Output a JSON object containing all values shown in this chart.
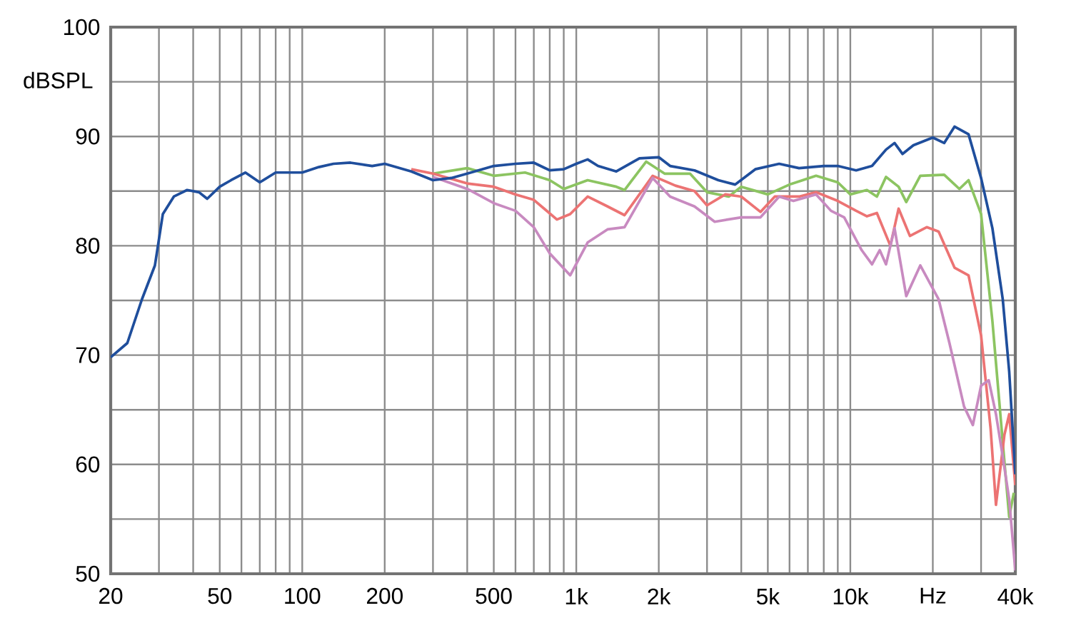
{
  "chart_data": {
    "type": "line",
    "ylabel": "dBSPL",
    "log": "x",
    "grid": true,
    "xlim": [
      20,
      40000
    ],
    "ylim": [
      50,
      100
    ],
    "xticks": [
      20,
      {
        "value": 30,
        "label": null
      },
      {
        "value": 40,
        "label": null
      },
      50,
      {
        "value": 60,
        "label": null
      },
      {
        "value": 70,
        "label": null
      },
      {
        "value": 80,
        "label": null
      },
      {
        "value": 90,
        "label": null
      },
      100,
      200,
      {
        "value": 300,
        "label": null
      },
      {
        "value": 400,
        "label": null
      },
      500,
      {
        "value": 600,
        "label": null
      },
      {
        "value": 700,
        "label": null
      },
      {
        "value": 800,
        "label": null
      },
      {
        "value": 900,
        "label": null
      },
      {
        "value": 1000,
        "label": "1k"
      },
      {
        "value": 2000,
        "label": "2k"
      },
      {
        "value": 3000,
        "label": null
      },
      {
        "value": 4000,
        "label": null
      },
      {
        "value": 5000,
        "label": "5k"
      },
      {
        "value": 6000,
        "label": null
      },
      {
        "value": 7000,
        "label": null
      },
      {
        "value": 8000,
        "label": null
      },
      {
        "value": 9000,
        "label": null
      },
      {
        "value": 10000,
        "label": "10k"
      },
      {
        "value": 20000,
        "label": "Hz"
      },
      {
        "value": 30000,
        "label": null
      },
      {
        "value": 40000,
        "label": "40k"
      }
    ],
    "yticks": [
      50,
      {
        "value": 55,
        "label": null
      },
      60,
      {
        "value": 65,
        "label": null
      },
      70,
      {
        "value": 75,
        "label": null
      },
      80,
      {
        "value": 85,
        "label": null
      },
      90,
      {
        "value": 95,
        "label": null
      },
      100
    ],
    "series": [
      {
        "color": "#8cc461",
        "x": [
          300,
          400,
          500,
          650,
          800,
          900,
          1100,
          1400,
          1500,
          1800,
          2100,
          2600,
          3000,
          3600,
          4000,
          5000,
          6000,
          7500,
          9000,
          10000,
          11500,
          12500,
          13500,
          15000,
          16000,
          18000,
          22000,
          25000,
          27000,
          30000,
          33000,
          36000,
          38000,
          39500
        ],
        "values": [
          86.6,
          87.1,
          86.4,
          86.7,
          86.0,
          85.2,
          86.0,
          85.4,
          85.1,
          87.7,
          86.6,
          86.6,
          84.9,
          84.5,
          85.4,
          84.7,
          85.6,
          86.4,
          85.8,
          84.7,
          85.1,
          84.5,
          86.3,
          85.4,
          84.0,
          86.4,
          86.5,
          85.2,
          86.0,
          82.9,
          73.1,
          62.0,
          55.2,
          57.4
        ]
      },
      {
        "color": "#ec7373",
        "x": [
          250,
          300,
          400,
          500,
          600,
          700,
          850,
          950,
          1100,
          1300,
          1500,
          1700,
          1900,
          2300,
          2700,
          3000,
          3500,
          4000,
          4700,
          5300,
          6500,
          7500,
          9000,
          10500,
          11500,
          12500,
          14000,
          15000,
          16500,
          19000,
          21000,
          24000,
          27000,
          30000,
          32500,
          34000,
          36500,
          38000,
          40000
        ],
        "values": [
          87.0,
          86.6,
          85.7,
          85.4,
          84.7,
          84.2,
          82.4,
          82.9,
          84.5,
          83.6,
          82.8,
          84.7,
          86.4,
          85.5,
          85.0,
          83.7,
          84.7,
          84.5,
          83.1,
          84.5,
          84.5,
          84.9,
          84.1,
          83.2,
          82.7,
          83.0,
          80.0,
          83.4,
          80.9,
          81.7,
          81.3,
          78.0,
          77.3,
          71.8,
          63.3,
          56.3,
          62.7,
          64.6,
          58.1
        ]
      },
      {
        "color": "#c88ac0",
        "x": [
          300,
          400,
          500,
          600,
          700,
          800,
          950,
          1100,
          1300,
          1500,
          1900,
          2200,
          2700,
          3200,
          4000,
          4700,
          5500,
          6200,
          7500,
          8500,
          9500,
          11000,
          12000,
          12800,
          13500,
          14500,
          16000,
          18000,
          21000,
          23000,
          26000,
          28000,
          30000,
          32000,
          34000,
          36000,
          38000,
          40000
        ],
        "values": [
          86.3,
          85.2,
          83.9,
          83.2,
          81.7,
          79.3,
          77.3,
          80.3,
          81.5,
          81.7,
          86.2,
          84.5,
          83.6,
          82.2,
          82.6,
          82.6,
          84.5,
          84.1,
          84.7,
          83.2,
          82.6,
          79.6,
          78.3,
          79.6,
          78.3,
          81.6,
          75.4,
          78.2,
          75.1,
          71.1,
          65.3,
          63.6,
          67.2,
          67.7,
          64.6,
          60.7,
          56.8,
          50.3
        ]
      },
      {
        "color": "#1f4e9c",
        "x": [
          20,
          23,
          26,
          29,
          31,
          34,
          38,
          42,
          45,
          50,
          55,
          62,
          70,
          80,
          100,
          115,
          130,
          150,
          180,
          200,
          250,
          300,
          350,
          400,
          500,
          600,
          700,
          800,
          900,
          1000,
          1100,
          1200,
          1400,
          1700,
          2000,
          2200,
          2700,
          3300,
          3800,
          4500,
          5500,
          6500,
          8000,
          9000,
          10500,
          12000,
          13500,
          14500,
          15500,
          17000,
          20000,
          22000,
          24000,
          27000,
          30000,
          33000,
          36000,
          38000,
          40000
        ],
        "values": [
          69.8,
          71.1,
          75.1,
          78.2,
          82.9,
          84.5,
          85.1,
          84.9,
          84.3,
          85.4,
          86.0,
          86.7,
          85.8,
          86.7,
          86.7,
          87.2,
          87.5,
          87.6,
          87.3,
          87.5,
          86.8,
          86.0,
          86.2,
          86.6,
          87.3,
          87.5,
          87.6,
          86.9,
          87.0,
          87.5,
          87.9,
          87.3,
          86.8,
          88.0,
          88.1,
          87.3,
          86.9,
          86.0,
          85.6,
          87.0,
          87.5,
          87.1,
          87.3,
          87.3,
          86.9,
          87.3,
          88.8,
          89.4,
          88.4,
          89.2,
          89.9,
          89.4,
          90.9,
          90.2,
          86.2,
          81.6,
          75.1,
          68.5,
          59.1
        ]
      }
    ]
  }
}
